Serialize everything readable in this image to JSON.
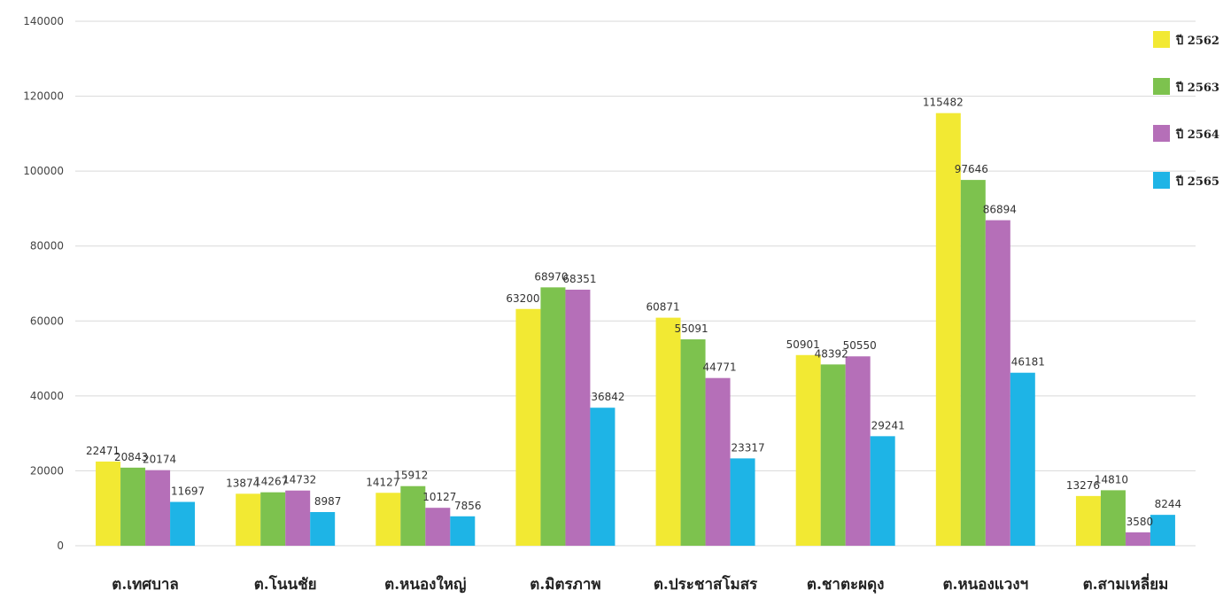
{
  "chart_data": {
    "type": "bar",
    "categories": [
      "ต.เทศบาล",
      "ต.โนนชัย",
      "ต.หนองใหญ่",
      "ต.มิตรภาพ",
      "ต.ประชาสโมสร",
      "ต.ชาตะผดุง",
      "ต.หนองแวงฯ",
      "ต.สามเหลี่ยม"
    ],
    "series": [
      {
        "name": "ปี 2562",
        "color": "#f2e933",
        "values": [
          22471,
          13874,
          14127,
          63200,
          60871,
          50901,
          115482,
          13276
        ]
      },
      {
        "name": "ปี 2563",
        "color": "#7dc24e",
        "values": [
          20843,
          14267,
          15912,
          68970,
          55091,
          48392,
          97646,
          14810
        ]
      },
      {
        "name": "ปี 2564",
        "color": "#b56fb8",
        "values": [
          20174,
          14732,
          10127,
          68351,
          44771,
          50550,
          86894,
          3580
        ]
      },
      {
        "name": "ปี 2565",
        "color": "#1eb4e6",
        "values": [
          11697,
          8987,
          7856,
          36842,
          23317,
          29241,
          46181,
          8244
        ]
      }
    ],
    "ylim": [
      0,
      140000
    ],
    "yticks": [
      "0",
      "20000",
      "40000",
      "60000",
      "80000",
      "100000",
      "120000",
      "140000"
    ],
    "grid": true,
    "legend": "right",
    "data_labels": true
  }
}
